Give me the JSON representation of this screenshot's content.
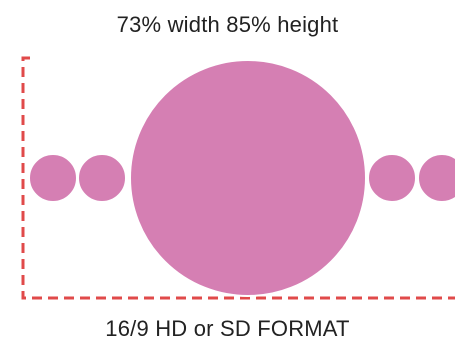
{
  "top_caption": "73% width 85% height",
  "bottom_caption": "16/9 HD or SD FORMAT",
  "colors": {
    "circle_fill": "#d57fb3",
    "frame_dash": "#e04a4a",
    "text": "#222222"
  }
}
